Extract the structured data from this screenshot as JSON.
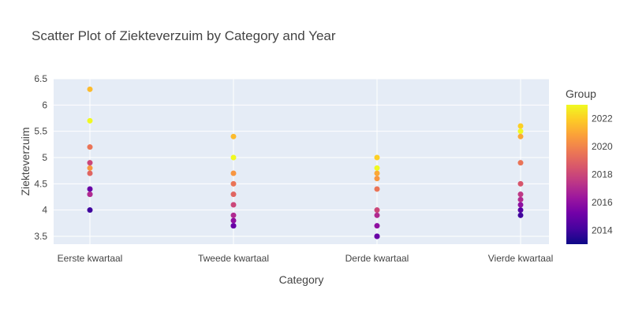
{
  "chart_data": {
    "type": "scatter",
    "title": "Scatter Plot of Ziekteverzuim by Category and Year",
    "xlabel": "Category",
    "ylabel": "Ziekteverzuim",
    "categories": [
      "Eerste kwartaal",
      "Tweede kwartaal",
      "Derde kwartaal",
      "Vierde kwartaal"
    ],
    "ylim": [
      3.35,
      6.5
    ],
    "yticks": [
      3.5,
      4,
      4.5,
      5,
      5.5,
      6,
      6.5
    ],
    "grid": true,
    "colorbar": {
      "title": "Group",
      "range": [
        2013,
        2023
      ],
      "ticks": [
        2014,
        2016,
        2018,
        2020,
        2022
      ],
      "colorscale": [
        "#0d0887",
        "#46039f",
        "#7201a8",
        "#9c179e",
        "#bd3786",
        "#d8576b",
        "#ed7953",
        "#fb9f3a",
        "#fdca26",
        "#f0f921"
      ]
    },
    "points": [
      {
        "category": "Eerste kwartaal",
        "year": 2014,
        "value": 4.0
      },
      {
        "category": "Eerste kwartaal",
        "year": 2015,
        "value": 4.4
      },
      {
        "category": "Eerste kwartaal",
        "year": 2016,
        "value": 4.3
      },
      {
        "category": "Eerste kwartaal",
        "year": 2017,
        "value": 4.3
      },
      {
        "category": "Eerste kwartaal",
        "year": 2018,
        "value": 4.9
      },
      {
        "category": "Eerste kwartaal",
        "year": 2019,
        "value": 4.7
      },
      {
        "category": "Eerste kwartaal",
        "year": 2019.5,
        "value": 5.2
      },
      {
        "category": "Eerste kwartaal",
        "year": 2020.5,
        "value": 4.8
      },
      {
        "category": "Eerste kwartaal",
        "year": 2021.5,
        "value": 6.3
      },
      {
        "category": "Eerste kwartaal",
        "year": 2023,
        "value": 5.7
      },
      {
        "category": "Tweede kwartaal",
        "year": 2014,
        "value": 3.7
      },
      {
        "category": "Tweede kwartaal",
        "year": 2015,
        "value": 3.7
      },
      {
        "category": "Tweede kwartaal",
        "year": 2016,
        "value": 3.8
      },
      {
        "category": "Tweede kwartaal",
        "year": 2017,
        "value": 3.9
      },
      {
        "category": "Tweede kwartaal",
        "year": 2018,
        "value": 4.1
      },
      {
        "category": "Tweede kwartaal",
        "year": 2019,
        "value": 4.3
      },
      {
        "category": "Tweede kwartaal",
        "year": 2019.5,
        "value": 4.5
      },
      {
        "category": "Tweede kwartaal",
        "year": 2020.5,
        "value": 4.7
      },
      {
        "category": "Tweede kwartaal",
        "year": 2021.5,
        "value": 5.4
      },
      {
        "category": "Tweede kwartaal",
        "year": 2023,
        "value": 5.0
      },
      {
        "category": "Derde kwartaal",
        "year": 2014,
        "value": 3.5
      },
      {
        "category": "Derde kwartaal",
        "year": 2015,
        "value": 3.5
      },
      {
        "category": "Derde kwartaal",
        "year": 2016,
        "value": 3.7
      },
      {
        "category": "Derde kwartaal",
        "year": 2017,
        "value": 3.9
      },
      {
        "category": "Derde kwartaal",
        "year": 2018,
        "value": 4.0
      },
      {
        "category": "Derde kwartaal",
        "year": 2019.5,
        "value": 4.4
      },
      {
        "category": "Derde kwartaal",
        "year": 2020.5,
        "value": 4.6
      },
      {
        "category": "Derde kwartaal",
        "year": 2021,
        "value": 4.7
      },
      {
        "category": "Derde kwartaal",
        "year": 2022,
        "value": 5.0
      },
      {
        "category": "Derde kwartaal",
        "year": 2023,
        "value": 4.8
      },
      {
        "category": "Vierde kwartaal",
        "year": 2014,
        "value": 3.9
      },
      {
        "category": "Vierde kwartaal",
        "year": 2014.5,
        "value": 4.0
      },
      {
        "category": "Vierde kwartaal",
        "year": 2016,
        "value": 4.1
      },
      {
        "category": "Vierde kwartaal",
        "year": 2017,
        "value": 4.2
      },
      {
        "category": "Vierde kwartaal",
        "year": 2017.5,
        "value": 4.3
      },
      {
        "category": "Vierde kwartaal",
        "year": 2018.5,
        "value": 4.5
      },
      {
        "category": "Vierde kwartaal",
        "year": 2019.5,
        "value": 4.9
      },
      {
        "category": "Vierde kwartaal",
        "year": 2021,
        "value": 5.4
      },
      {
        "category": "Vierde kwartaal",
        "year": 2022,
        "value": 5.6
      },
      {
        "category": "Vierde kwartaal",
        "year": 2023,
        "value": 5.5
      }
    ]
  }
}
